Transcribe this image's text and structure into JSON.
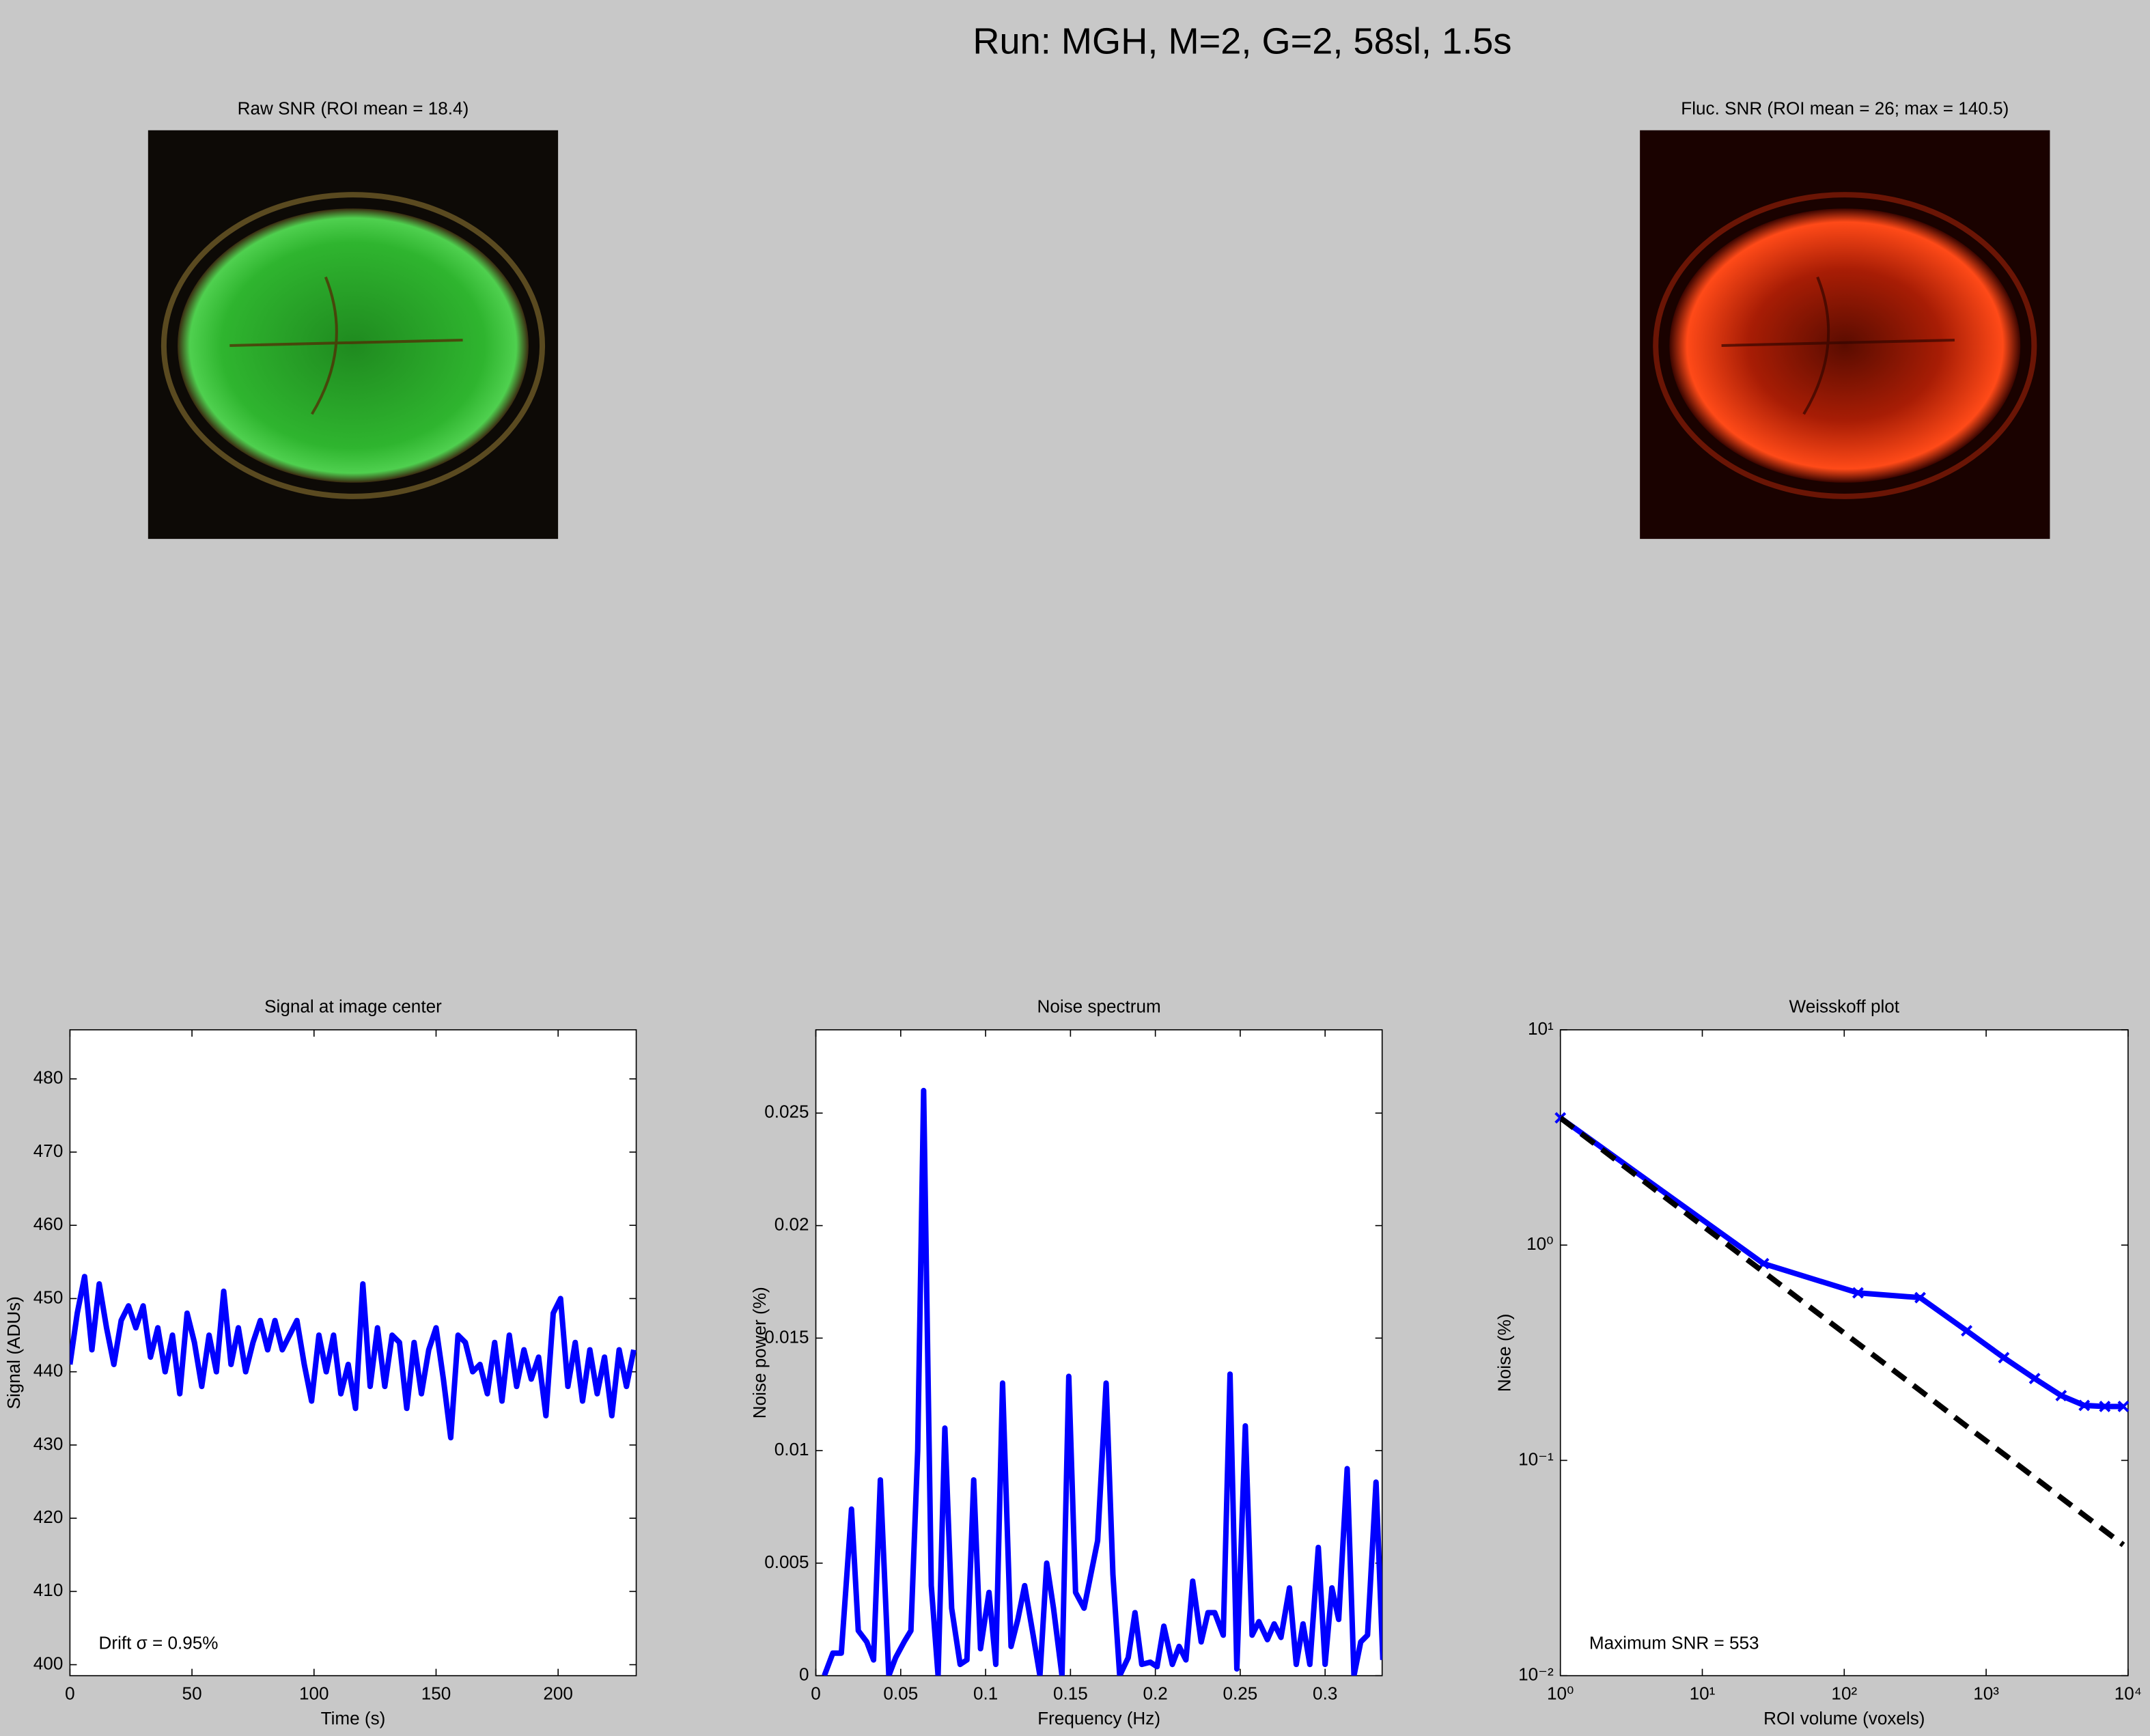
{
  "title": "Run: MGH, M=2, G=2, 58sl, 1.5s",
  "chart_data": [
    {
      "type": "image",
      "title": "Raw SNR (ROI mean = 18.4)",
      "colormap": "green"
    },
    {
      "type": "image",
      "title": "Fluc. SNR (ROI mean = 26; max = 140.5)",
      "colormap": "red"
    },
    {
      "type": "line",
      "title": "Signal at image center",
      "xlabel": "Time (s)",
      "ylabel": "Signal (ADUs)",
      "annotation": "Drift σ = 0.95%",
      "x": [
        0,
        3,
        6,
        9,
        12,
        15,
        18,
        21,
        24,
        27,
        30,
        33,
        36,
        39,
        42,
        45,
        48,
        51,
        54,
        57,
        60,
        63,
        66,
        69,
        72,
        75,
        78,
        81,
        84,
        87,
        90,
        93,
        96,
        99,
        102,
        105,
        108,
        111,
        114,
        117,
        120,
        123,
        126,
        129,
        132,
        135,
        138,
        141,
        144,
        147,
        150,
        153,
        156,
        159,
        162,
        165,
        168,
        171,
        174,
        177,
        180,
        183,
        186,
        189,
        192,
        195,
        198,
        201,
        204,
        207,
        210,
        213,
        216,
        219,
        222,
        225,
        228,
        231
      ],
      "series": [
        {
          "color": "#0000ff",
          "values": [
            441,
            448,
            453,
            443,
            452,
            446,
            441,
            447,
            449,
            446,
            449,
            442,
            446,
            440,
            445,
            437,
            448,
            444,
            438,
            445,
            440,
            451,
            441,
            446,
            440,
            444,
            447,
            443,
            447,
            443,
            445,
            447,
            441,
            436,
            445,
            440,
            445,
            437,
            441,
            435,
            452,
            438,
            446,
            438,
            445,
            444,
            435,
            444,
            437,
            443,
            446,
            439,
            431,
            445,
            444,
            440,
            441,
            437,
            444,
            436,
            445,
            438,
            443,
            439,
            442,
            434,
            448,
            450,
            438,
            444,
            436,
            443,
            437,
            442,
            434,
            443,
            438,
            443
          ]
        }
      ],
      "xlim": [
        0,
        232
      ],
      "ylim": [
        398.5,
        486.7
      ],
      "xticks": [
        0,
        50,
        100,
        150,
        200
      ],
      "yticks": [
        400,
        410,
        420,
        430,
        440,
        450,
        460,
        470,
        480
      ]
    },
    {
      "type": "line",
      "title": "Noise spectrum",
      "xlabel": "Frequency (Hz)",
      "ylabel": "Noise power (%)",
      "x": [
        0.005,
        0.01,
        0.015,
        0.021,
        0.025,
        0.03,
        0.034,
        0.038,
        0.043,
        0.047,
        0.052,
        0.056,
        0.06,
        0.0635,
        0.068,
        0.072,
        0.076,
        0.08,
        0.085,
        0.089,
        0.093,
        0.097,
        0.102,
        0.106,
        0.11,
        0.115,
        0.119,
        0.123,
        0.128,
        0.132,
        0.136,
        0.14,
        0.145,
        0.149,
        0.153,
        0.158,
        0.162,
        0.166,
        0.171,
        0.175,
        0.179,
        0.184,
        0.188,
        0.192,
        0.197,
        0.201,
        0.205,
        0.21,
        0.214,
        0.218,
        0.222,
        0.227,
        0.231,
        0.235,
        0.24,
        0.244,
        0.248,
        0.253,
        0.257,
        0.261,
        0.266,
        0.27,
        0.274,
        0.279,
        0.283,
        0.287,
        0.291,
        0.296,
        0.3,
        0.304,
        0.308,
        0.313,
        0.317,
        0.321,
        0.325,
        0.33,
        0.334
      ],
      "series": [
        {
          "color": "#0000ff",
          "values": [
            0,
            0.001,
            0.001,
            0.0074,
            0.002,
            0.0015,
            0.0007,
            0.0087,
            0,
            0.0008,
            0.0015,
            0.002,
            0.01,
            0.026,
            0.004,
            0,
            0.011,
            0.003,
            0.0005,
            0.0007,
            0.0087,
            0.0012,
            0.0037,
            0.0005,
            0.013,
            0.0013,
            0.0025,
            0.004,
            0.0018,
            0,
            0.005,
            0.003,
            0,
            0.0133,
            0.0037,
            0.003,
            0.0045,
            0.006,
            0.013,
            0.0045,
            0,
            0.0008,
            0.0028,
            0.0005,
            0.0006,
            0.0004,
            0.0022,
            0.0005,
            0.0013,
            0.0007,
            0.0042,
            0.0015,
            0.0028,
            0.0028,
            0.0018,
            0.0134,
            0.0003,
            0.0111,
            0.0018,
            0.0024,
            0.0016,
            0.0023,
            0.0017,
            0.0039,
            0.0005,
            0.0023,
            0.0005,
            0.0057,
            0.0005,
            0.0039,
            0.0025,
            0.0092,
            0,
            0.0015,
            0.0018,
            0.0086,
            0.0007
          ]
        }
      ],
      "xlim": [
        0,
        0.3336
      ],
      "ylim": [
        0,
        0.0287
      ],
      "xticks": [
        0,
        0.05,
        0.1,
        0.15,
        0.2,
        0.25,
        0.3
      ],
      "yticks": [
        0,
        0.005,
        0.01,
        0.015,
        0.02,
        0.025
      ]
    },
    {
      "type": "line",
      "title": "Weisskoff plot",
      "xlabel": "ROI volume (voxels)",
      "ylabel": "Noise (%)",
      "annotation": "Maximum SNR = 553",
      "log": true,
      "x": [
        1,
        27,
        125,
        343,
        729,
        1331,
        2197,
        3375,
        4913,
        6859,
        9261
      ],
      "series": [
        {
          "color": "#0000ff",
          "marker": "x",
          "linestyle": "solid",
          "values": [
            3.9,
            0.82,
            0.6,
            0.57,
            0.4,
            0.3,
            0.24,
            0.2,
            0.18,
            0.178,
            0.178
          ]
        },
        {
          "color": "#000000",
          "linestyle": "dashed",
          "values": [
            3.9,
            0.75,
            0.349,
            0.211,
            0.144,
            0.107,
            0.0832,
            0.0671,
            0.0556,
            0.0471,
            0.0405
          ]
        }
      ],
      "xlim": [
        1,
        10000
      ],
      "ylim": [
        0.01,
        10
      ],
      "xticks": [
        {
          "value": 1,
          "label": "10⁰"
        },
        {
          "value": 10,
          "label": "10¹"
        },
        {
          "value": 100,
          "label": "10²"
        },
        {
          "value": 1000,
          "label": "10³"
        },
        {
          "value": 10000,
          "label": "10⁴"
        }
      ],
      "yticks": [
        {
          "value": 0.01,
          "label": "10⁻²"
        },
        {
          "value": 0.1,
          "label": "10⁻¹"
        },
        {
          "value": 1,
          "label": "10⁰"
        },
        {
          "value": 10,
          "label": "10¹"
        }
      ]
    }
  ]
}
